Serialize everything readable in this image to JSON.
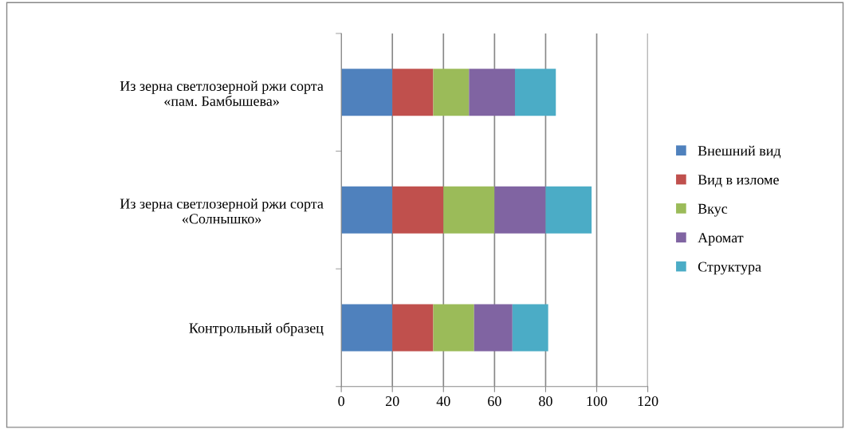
{
  "chart_data": {
    "type": "bar",
    "orientation": "horizontal",
    "stacked": true,
    "categories": [
      "Из зерна светлозерной ржи сорта\n«пам. Бамбышева»",
      "Из зерна светлозерной ржи сорта\n«Солнышко»",
      "Контрольный образец"
    ],
    "series": [
      {
        "name": "Внешний вид",
        "color": "#4f81bd",
        "values": [
          20,
          20,
          20
        ]
      },
      {
        "name": "Вид в изломе",
        "color": "#c0504d",
        "values": [
          16,
          20,
          16
        ]
      },
      {
        "name": "Вкус",
        "color": "#9bbb59",
        "values": [
          14,
          20,
          16
        ]
      },
      {
        "name": "Аромат",
        "color": "#8064a2",
        "values": [
          18,
          20,
          15
        ]
      },
      {
        "name": "Структура",
        "color": "#4bacc6",
        "values": [
          16,
          18,
          14
        ]
      }
    ],
    "xlim": [
      0,
      120
    ],
    "xticks": [
      0,
      20,
      40,
      60,
      80,
      100,
      120
    ],
    "grid": "x",
    "legend": "right"
  }
}
